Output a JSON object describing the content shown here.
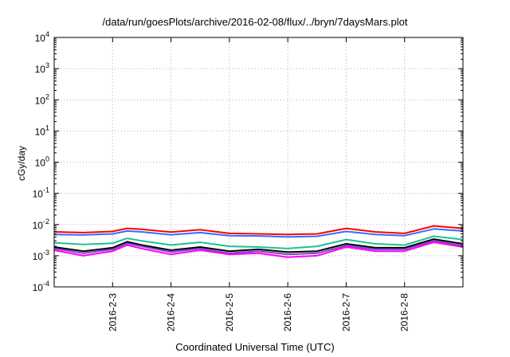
{
  "chart_data": {
    "type": "line",
    "title": "/data/run/goesPlots/archive/2016-02-08/flux/../bryn/7daysMars.plot",
    "xlabel": "Coordinated Universal Time (UTC)",
    "ylabel": "cGy/day",
    "y_scale": "log",
    "ylim": [
      0.0001,
      10000
    ],
    "xlim": [
      "2016-02-02T00:00",
      "2016-02-09T00:00"
    ],
    "y_ticks": [
      {
        "value": 0.0001,
        "base": "10",
        "exp": "-4"
      },
      {
        "value": 0.001,
        "base": "10",
        "exp": "-3"
      },
      {
        "value": 0.01,
        "base": "10",
        "exp": "-2"
      },
      {
        "value": 0.1,
        "base": "10",
        "exp": "-1"
      },
      {
        "value": 1,
        "base": "10",
        "exp": "0"
      },
      {
        "value": 10,
        "base": "10",
        "exp": "1"
      },
      {
        "value": 100,
        "base": "10",
        "exp": "2"
      },
      {
        "value": 1000,
        "base": "10",
        "exp": "3"
      },
      {
        "value": 10000,
        "base": "10",
        "exp": "4"
      }
    ],
    "x_ticks": [
      {
        "value": "2016-02-03T00:00",
        "label": "2016-2-3"
      },
      {
        "value": "2016-02-04T00:00",
        "label": "2016-2-4"
      },
      {
        "value": "2016-02-05T00:00",
        "label": "2016-2-5"
      },
      {
        "value": "2016-02-06T00:00",
        "label": "2016-2-6"
      },
      {
        "value": "2016-02-07T00:00",
        "label": "2016-2-7"
      },
      {
        "value": "2016-02-08T00:00",
        "label": "2016-2-8"
      }
    ],
    "grid": true,
    "legend": "none",
    "series": [
      {
        "color": "#ff0000",
        "x": [
          "2016-02-02T00:00",
          "2016-02-02T12:00",
          "2016-02-03T00:00",
          "2016-02-03T06:00",
          "2016-02-03T12:00",
          "2016-02-04T00:00",
          "2016-02-04T12:00",
          "2016-02-05T00:00",
          "2016-02-05T12:00",
          "2016-02-06T00:00",
          "2016-02-06T12:00",
          "2016-02-07T00:00",
          "2016-02-07T12:00",
          "2016-02-08T00:00",
          "2016-02-08T12:00",
          "2016-02-09T00:00"
        ],
        "values": [
          0.0058,
          0.0055,
          0.006,
          0.0075,
          0.007,
          0.0057,
          0.0068,
          0.0052,
          0.005,
          0.0048,
          0.005,
          0.0075,
          0.0058,
          0.0052,
          0.009,
          0.0075
        ]
      },
      {
        "color": "#3070ff",
        "x": [
          "2016-02-02T00:00",
          "2016-02-02T12:00",
          "2016-02-03T00:00",
          "2016-02-03T06:00",
          "2016-02-03T12:00",
          "2016-02-04T00:00",
          "2016-02-04T12:00",
          "2016-02-05T00:00",
          "2016-02-05T12:00",
          "2016-02-06T00:00",
          "2016-02-06T12:00",
          "2016-02-07T00:00",
          "2016-02-07T12:00",
          "2016-02-08T00:00",
          "2016-02-08T12:00",
          "2016-02-09T00:00"
        ],
        "values": [
          0.0048,
          0.0046,
          0.005,
          0.0062,
          0.0058,
          0.0047,
          0.0055,
          0.0044,
          0.0043,
          0.004,
          0.0042,
          0.006,
          0.0048,
          0.0044,
          0.0072,
          0.0062
        ]
      },
      {
        "color": "#20c090",
        "x": [
          "2016-02-02T00:00",
          "2016-02-02T12:00",
          "2016-02-03T00:00",
          "2016-02-03T06:00",
          "2016-02-03T12:00",
          "2016-02-04T00:00",
          "2016-02-04T12:00",
          "2016-02-05T00:00",
          "2016-02-05T12:00",
          "2016-02-06T00:00",
          "2016-02-06T12:00",
          "2016-02-07T00:00",
          "2016-02-07T12:00",
          "2016-02-08T00:00",
          "2016-02-08T12:00",
          "2016-02-09T00:00"
        ],
        "values": [
          0.0026,
          0.0023,
          0.0025,
          0.0036,
          0.003,
          0.0022,
          0.0027,
          0.002,
          0.0019,
          0.0017,
          0.002,
          0.0033,
          0.0024,
          0.0022,
          0.0042,
          0.0033
        ]
      },
      {
        "color": "#000000",
        "x": [
          "2016-02-02T00:00",
          "2016-02-02T12:00",
          "2016-02-03T00:00",
          "2016-02-03T06:00",
          "2016-02-03T12:00",
          "2016-02-04T00:00",
          "2016-02-04T12:00",
          "2016-02-05T00:00",
          "2016-02-05T12:00",
          "2016-02-06T00:00",
          "2016-02-06T12:00",
          "2016-02-07T00:00",
          "2016-02-07T12:00",
          "2016-02-08T00:00",
          "2016-02-08T12:00",
          "2016-02-09T00:00"
        ],
        "values": [
          0.0019,
          0.0014,
          0.0018,
          0.0028,
          0.0022,
          0.0015,
          0.0019,
          0.0014,
          0.0016,
          0.0013,
          0.0014,
          0.0024,
          0.0018,
          0.0018,
          0.0034,
          0.0024
        ]
      },
      {
        "color": "#8040c0",
        "x": [
          "2016-02-02T00:00",
          "2016-02-02T12:00",
          "2016-02-03T00:00",
          "2016-02-03T06:00",
          "2016-02-03T12:00",
          "2016-02-04T00:00",
          "2016-02-04T12:00",
          "2016-02-05T00:00",
          "2016-02-05T12:00",
          "2016-02-06T00:00",
          "2016-02-06T12:00",
          "2016-02-07T00:00",
          "2016-02-07T12:00",
          "2016-02-08T00:00",
          "2016-02-08T12:00",
          "2016-02-09T00:00"
        ],
        "values": [
          0.0017,
          0.0012,
          0.0016,
          0.0025,
          0.002,
          0.0013,
          0.0017,
          0.0012,
          0.0014,
          0.0011,
          0.0012,
          0.0021,
          0.0016,
          0.0016,
          0.003,
          0.0021
        ]
      },
      {
        "color": "#ff00ff",
        "x": [
          "2016-02-02T00:00",
          "2016-02-02T12:00",
          "2016-02-03T00:00",
          "2016-02-03T06:00",
          "2016-02-03T12:00",
          "2016-02-04T00:00",
          "2016-02-04T12:00",
          "2016-02-05T00:00",
          "2016-02-05T12:00",
          "2016-02-06T00:00",
          "2016-02-06T12:00",
          "2016-02-07T00:00",
          "2016-02-07T12:00",
          "2016-02-08T00:00",
          "2016-02-08T12:00",
          "2016-02-09T00:00"
        ],
        "values": [
          0.0015,
          0.001,
          0.0014,
          0.0022,
          0.0017,
          0.0011,
          0.0015,
          0.0011,
          0.0012,
          0.0009,
          0.001,
          0.0019,
          0.0014,
          0.0014,
          0.0027,
          0.0019
        ]
      }
    ]
  }
}
